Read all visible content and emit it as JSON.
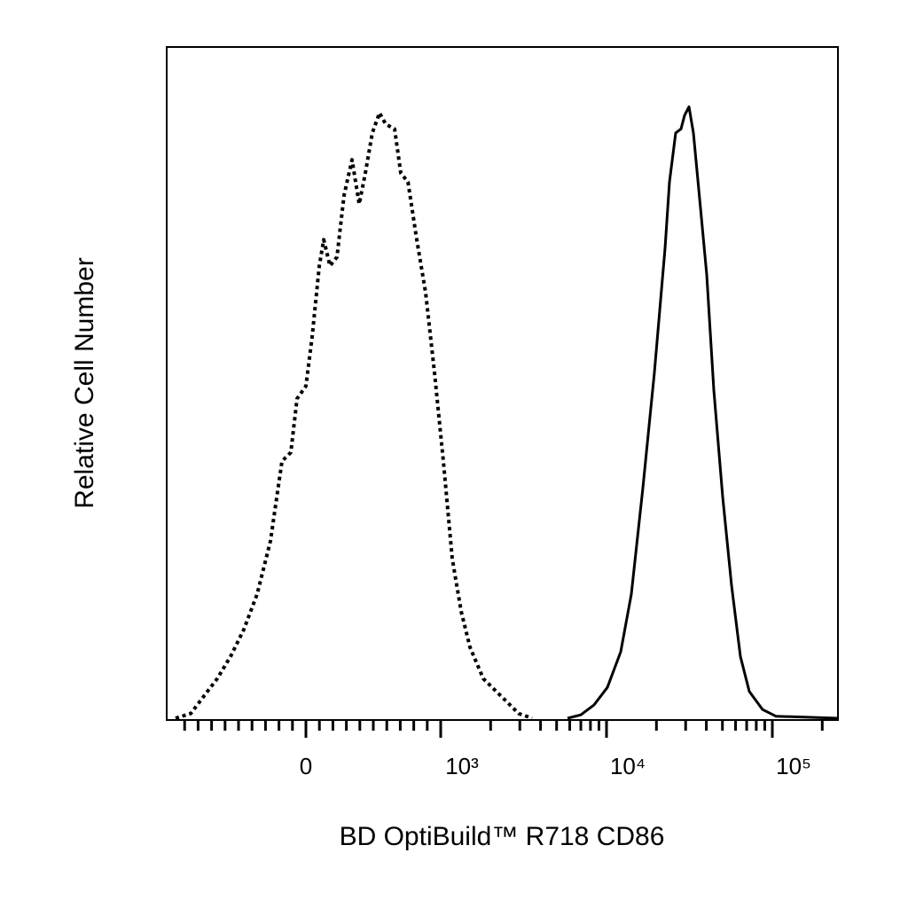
{
  "chart_data": {
    "type": "line",
    "x_label": "BD OptiBuild™ R718 CD86",
    "y_label": "Relative Cell Number",
    "xlim": [
      -1033,
      248700
    ],
    "ylim": [
      0,
      100
    ],
    "xticks": [
      0,
      {
        "value": 1000,
        "label": "10³"
      },
      {
        "value": 10000,
        "label": "10⁴"
      },
      {
        "value": 100000,
        "label": "10⁵"
      }
    ],
    "xminorticks": [
      -900,
      -800,
      -700,
      -600,
      -500,
      -400,
      -300,
      -200,
      -100,
      100,
      200,
      300,
      400,
      500,
      600,
      700,
      800,
      900,
      2000,
      3000,
      4000,
      5000,
      6000,
      7000,
      8000,
      9000,
      20000,
      30000,
      40000,
      50000,
      60000,
      70000,
      80000,
      90000,
      200000
    ],
    "series": [
      {
        "color": "#000000",
        "style": "dotted",
        "x": [
          -967,
          -855,
          -757,
          -658,
          -559,
          -461,
          -362,
          -263,
          -178,
          -112,
          -66,
          0,
          46,
          99,
          132,
          178,
          230,
          283,
          342,
          395,
          441,
          493,
          546,
          592,
          658,
          704,
          757,
          822,
          888,
          954,
          1037,
          1174,
          1328,
          1501,
          1806,
          2310,
          2955,
          3554
        ],
        "values": [
          0,
          0.7,
          3.3,
          5.9,
          9.2,
          13.2,
          18.5,
          26.4,
          38.3,
          39.6,
          47.6,
          49.5,
          56.8,
          67.4,
          71.3,
          67.4,
          68.7,
          77.9,
          83.2,
          76.6,
          81.2,
          87.2,
          90.2,
          88.5,
          87.8,
          81.2,
          79.9,
          71.3,
          63.4,
          51.5,
          38.3,
          23.8,
          15.9,
          10.6,
          5.9,
          3.3,
          0.7,
          0
        ]
      },
      {
        "color": "#000000",
        "style": "solid",
        "x": [
          5817,
          6998,
          8418,
          10123,
          12176,
          14115,
          16572,
          19452,
          22540,
          23970,
          26130,
          28130,
          29550,
          31430,
          33430,
          36880,
          40220,
          44380,
          50180,
          56750,
          64200,
          72600,
          87350,
          105050,
          248700
        ],
        "values": [
          0,
          0.5,
          2.0,
          4.6,
          9.9,
          18.5,
          34.3,
          51.5,
          70.0,
          79.9,
          87.2,
          87.8,
          89.8,
          91.1,
          87.2,
          76.0,
          66.1,
          48.9,
          33.0,
          19.8,
          9.2,
          4.0,
          1.3,
          0.3,
          0
        ]
      }
    ]
  }
}
